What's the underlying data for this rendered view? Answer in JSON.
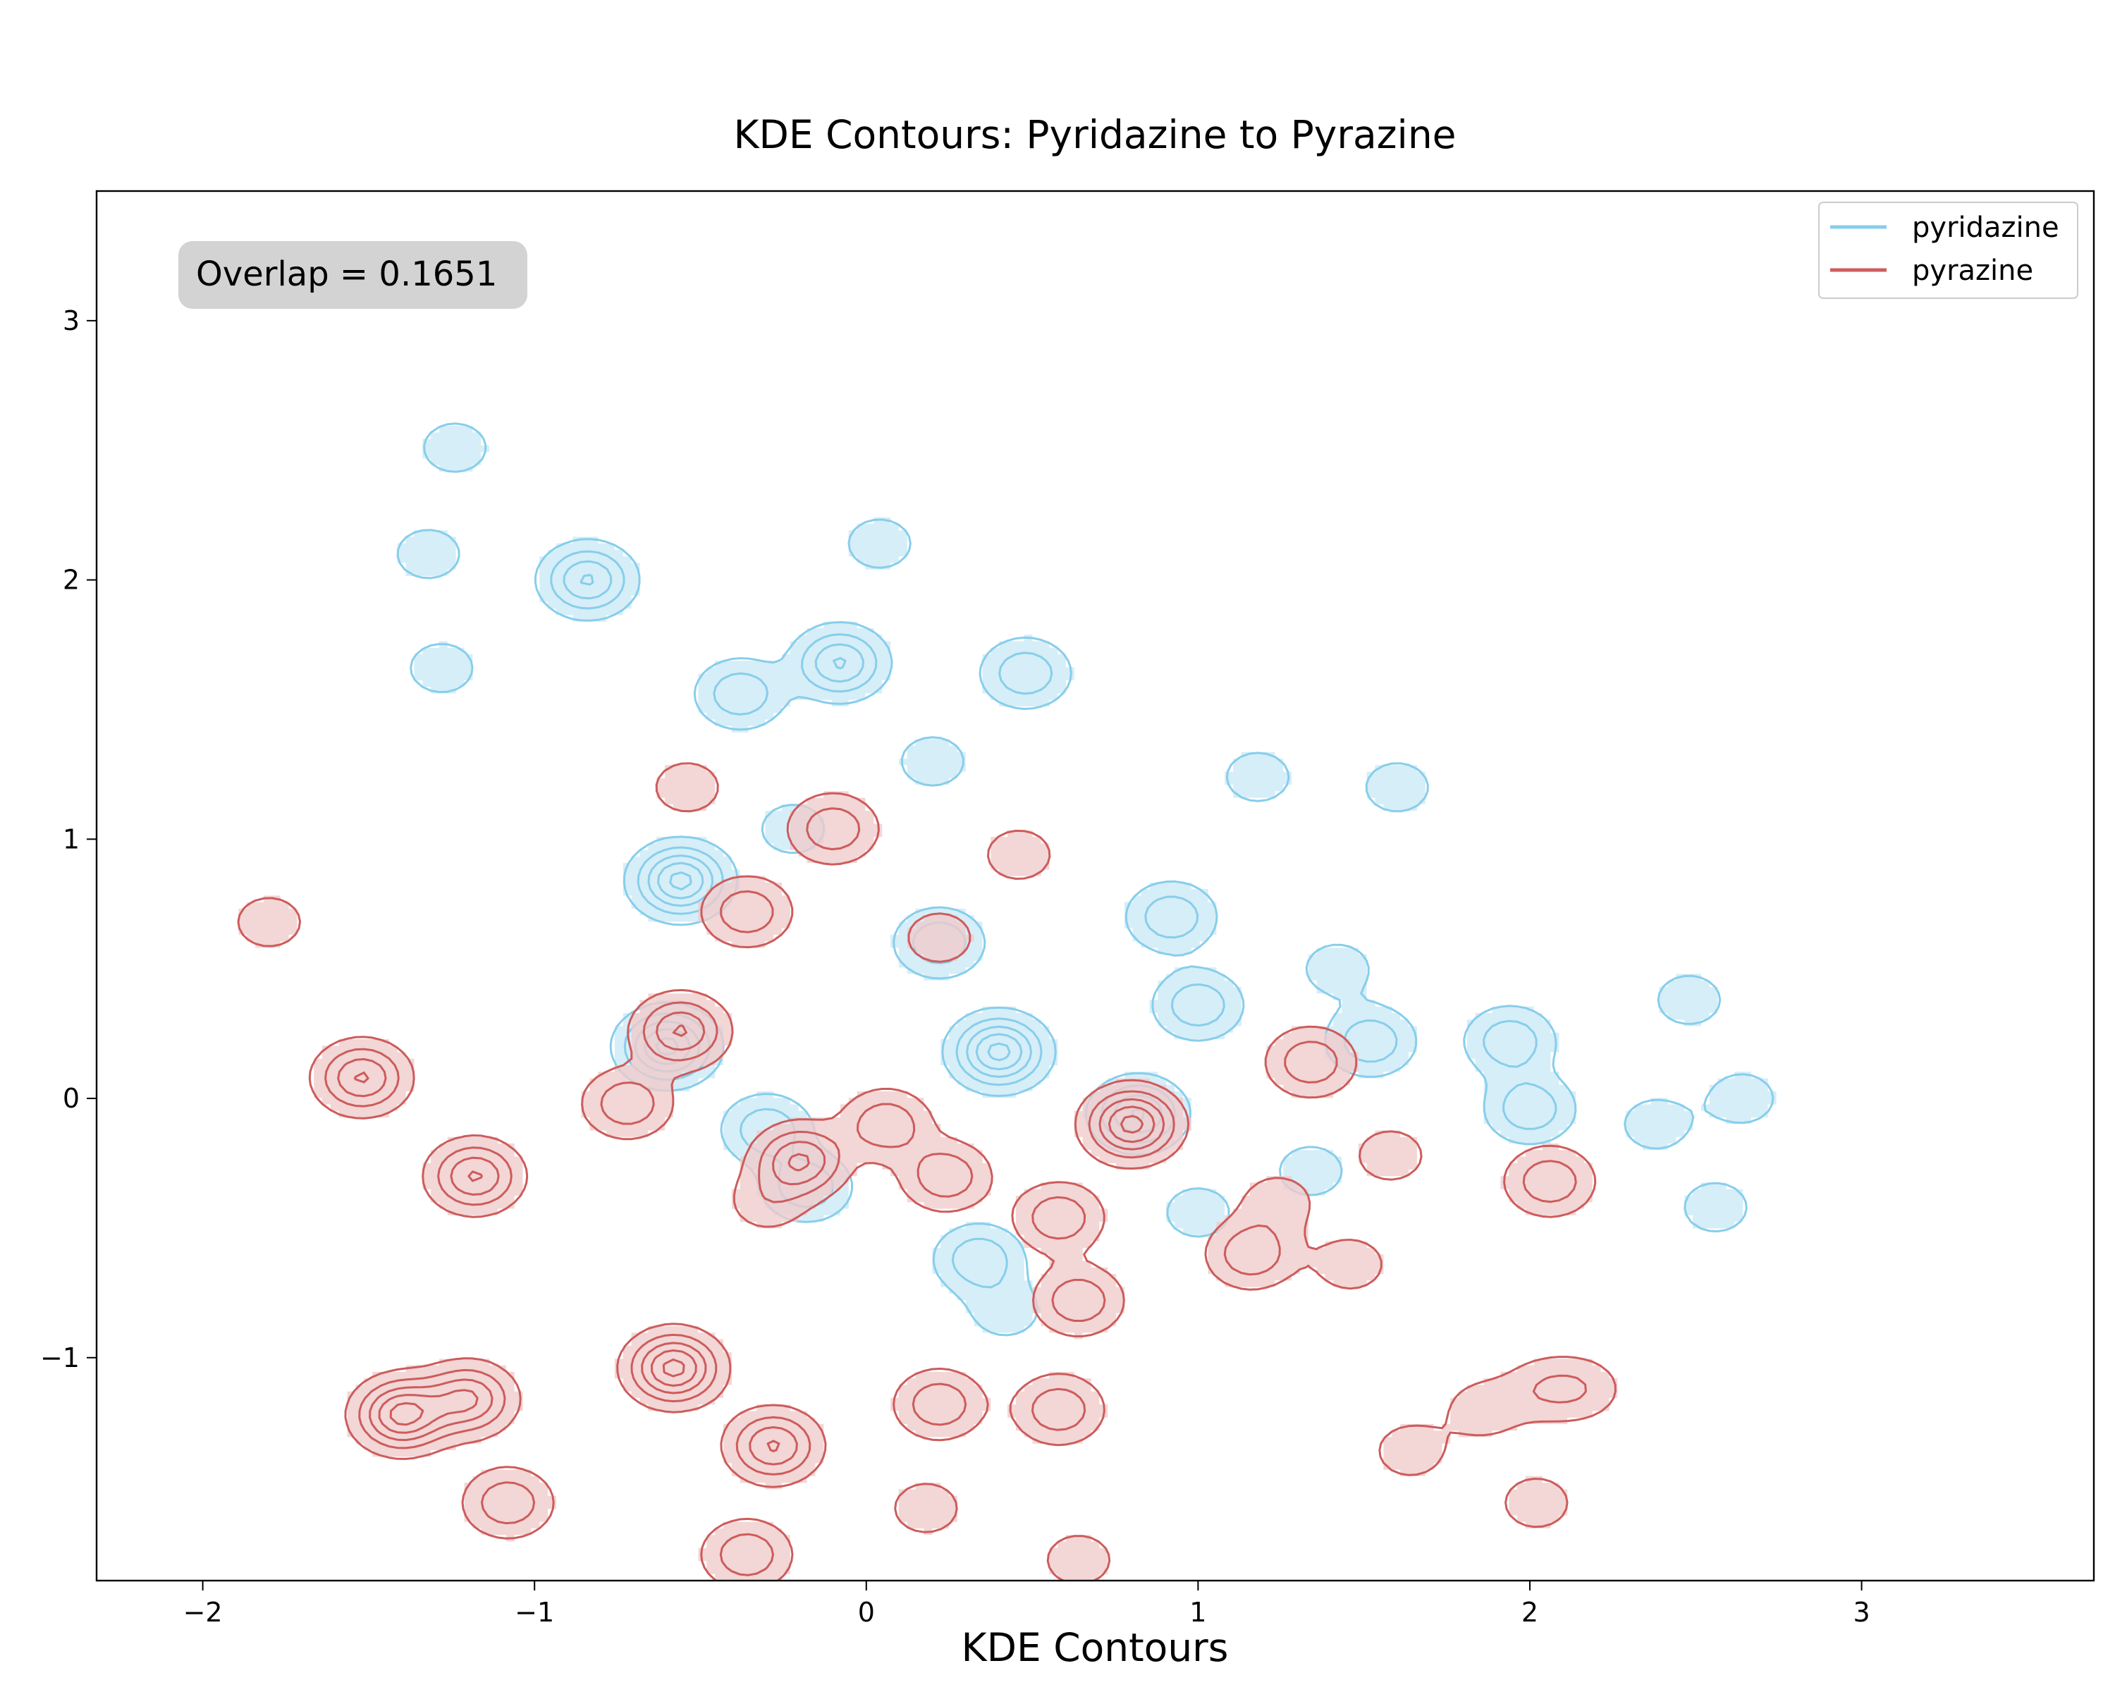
{
  "chart_data": {
    "type": "contour",
    "title": "KDE Contours: Pyridazine to Pyrazine",
    "xlabel": "KDE Contours",
    "ylabel": "",
    "xlim": [
      -2.32,
      3.7
    ],
    "ylim": [
      -1.86,
      3.5
    ],
    "xticks": [
      -2,
      -1,
      0,
      1,
      2,
      3
    ],
    "xtick_labels": [
      "−2",
      "−1",
      "0",
      "1",
      "2",
      "3"
    ],
    "yticks": [
      -1,
      0,
      1,
      2,
      3
    ],
    "ytick_labels": [
      "−1",
      "0",
      "1",
      "2",
      "3"
    ],
    "grid": false,
    "legend_position": "top-right",
    "annotation": "Overlap = 0.1651",
    "series": [
      {
        "name": "pyridazine",
        "color": "#87CEEB",
        "fill": "#d6eef8",
        "centers": [
          {
            "x": -0.84,
            "y": 2.0,
            "weight": 3
          },
          {
            "x": -1.24,
            "y": 2.51,
            "weight": 1
          },
          {
            "x": -1.32,
            "y": 2.1,
            "weight": 1
          },
          {
            "x": -1.28,
            "y": 1.66,
            "weight": 1
          },
          {
            "x": 0.04,
            "y": 2.14,
            "weight": 1
          },
          {
            "x": -0.38,
            "y": 1.56,
            "weight": 2
          },
          {
            "x": -0.08,
            "y": 1.68,
            "weight": 3
          },
          {
            "x": 0.48,
            "y": 1.64,
            "weight": 2
          },
          {
            "x": 0.2,
            "y": 1.3,
            "weight": 1
          },
          {
            "x": -0.22,
            "y": 1.04,
            "weight": 1
          },
          {
            "x": 1.18,
            "y": 1.24,
            "weight": 1
          },
          {
            "x": 1.6,
            "y": 1.2,
            "weight": 1
          },
          {
            "x": -0.56,
            "y": 0.84,
            "weight": 4
          },
          {
            "x": -0.6,
            "y": 0.2,
            "weight": 4
          },
          {
            "x": -0.3,
            "y": -0.12,
            "weight": 2
          },
          {
            "x": -0.18,
            "y": -0.34,
            "weight": 2
          },
          {
            "x": 0.22,
            "y": 0.6,
            "weight": 2
          },
          {
            "x": 0.4,
            "y": 0.18,
            "weight": 4
          },
          {
            "x": 0.92,
            "y": 0.7,
            "weight": 2
          },
          {
            "x": 1.0,
            "y": 0.36,
            "weight": 2
          },
          {
            "x": 0.82,
            "y": -0.06,
            "weight": 3
          },
          {
            "x": 1.42,
            "y": 0.5,
            "weight": 1
          },
          {
            "x": 1.52,
            "y": 0.22,
            "weight": 2
          },
          {
            "x": 0.34,
            "y": -0.62,
            "weight": 2
          },
          {
            "x": 0.42,
            "y": -0.82,
            "weight": 1
          },
          {
            "x": 1.0,
            "y": -0.44,
            "weight": 1
          },
          {
            "x": 1.34,
            "y": -0.28,
            "weight": 1
          },
          {
            "x": 1.94,
            "y": 0.22,
            "weight": 2
          },
          {
            "x": 2.0,
            "y": -0.04,
            "weight": 2
          },
          {
            "x": 2.48,
            "y": 0.38,
            "weight": 1
          },
          {
            "x": 2.64,
            "y": 0.0,
            "weight": 1
          },
          {
            "x": 2.38,
            "y": -0.1,
            "weight": 1
          },
          {
            "x": 2.56,
            "y": -0.42,
            "weight": 1
          }
        ]
      },
      {
        "name": "pyrazine",
        "color": "#CD5C5C",
        "fill": "#efcaca",
        "centers": [
          {
            "x": -0.54,
            "y": 1.2,
            "weight": 1
          },
          {
            "x": -0.1,
            "y": 1.04,
            "weight": 2
          },
          {
            "x": -0.36,
            "y": 0.72,
            "weight": 2
          },
          {
            "x": 0.46,
            "y": 0.94,
            "weight": 1
          },
          {
            "x": 0.22,
            "y": 0.62,
            "weight": 1
          },
          {
            "x": -1.8,
            "y": 0.68,
            "weight": 1
          },
          {
            "x": -1.52,
            "y": 0.08,
            "weight": 3
          },
          {
            "x": -1.18,
            "y": -0.3,
            "weight": 3
          },
          {
            "x": -0.56,
            "y": 0.26,
            "weight": 3
          },
          {
            "x": -0.72,
            "y": -0.02,
            "weight": 2
          },
          {
            "x": -0.2,
            "y": -0.24,
            "weight": 3
          },
          {
            "x": 0.06,
            "y": -0.1,
            "weight": 2
          },
          {
            "x": 0.24,
            "y": -0.3,
            "weight": 2
          },
          {
            "x": -0.3,
            "y": -0.4,
            "weight": 1
          },
          {
            "x": 0.8,
            "y": -0.1,
            "weight": 4
          },
          {
            "x": 1.34,
            "y": 0.14,
            "weight": 2
          },
          {
            "x": 1.58,
            "y": -0.22,
            "weight": 1
          },
          {
            "x": 1.16,
            "y": -0.6,
            "weight": 2
          },
          {
            "x": 1.24,
            "y": -0.4,
            "weight": 1
          },
          {
            "x": 1.46,
            "y": -0.64,
            "weight": 1
          },
          {
            "x": 2.06,
            "y": -0.32,
            "weight": 2
          },
          {
            "x": 0.58,
            "y": -0.46,
            "weight": 2
          },
          {
            "x": 0.64,
            "y": -0.78,
            "weight": 2
          },
          {
            "x": -1.4,
            "y": -1.22,
            "weight": 4
          },
          {
            "x": -1.2,
            "y": -1.16,
            "weight": 3
          },
          {
            "x": -1.08,
            "y": -1.56,
            "weight": 2
          },
          {
            "x": -0.58,
            "y": -1.04,
            "weight": 4
          },
          {
            "x": -0.28,
            "y": -1.34,
            "weight": 3
          },
          {
            "x": -0.36,
            "y": -1.76,
            "weight": 2
          },
          {
            "x": 0.22,
            "y": -1.18,
            "weight": 2
          },
          {
            "x": 0.58,
            "y": -1.2,
            "weight": 2
          },
          {
            "x": 0.18,
            "y": -1.58,
            "weight": 1
          },
          {
            "x": 0.64,
            "y": -1.78,
            "weight": 1
          },
          {
            "x": 1.64,
            "y": -1.36,
            "weight": 1
          },
          {
            "x": 1.86,
            "y": -1.2,
            "weight": 1
          },
          {
            "x": 2.04,
            "y": -1.12,
            "weight": 1
          },
          {
            "x": 2.16,
            "y": -1.12,
            "weight": 1
          },
          {
            "x": 2.02,
            "y": -1.56,
            "weight": 1
          }
        ]
      }
    ]
  }
}
